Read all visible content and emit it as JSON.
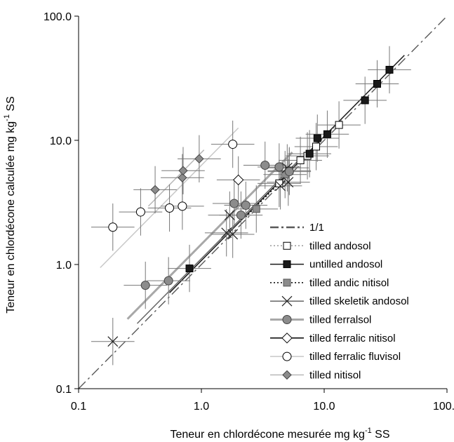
{
  "chart_data": {
    "type": "scatter",
    "xlabel": "Teneur en chlordécone mesurée  mg kg",
    "xlabel_sup": "-1",
    "xlabel_unit": " SS",
    "ylabel": "Teneur en chlordécone calculée  mg kg",
    "ylabel_sup": "-1",
    "ylabel_unit": " SS",
    "xscale": "log",
    "yscale": "log",
    "xlim": [
      0.1,
      100
    ],
    "ylim": [
      0.1,
      100
    ],
    "x_ticks": [
      0.1,
      1,
      10,
      100
    ],
    "y_ticks": [
      0.1,
      1,
      10,
      100
    ],
    "x_tick_labels": [
      "0.1",
      "1.0",
      "10.0",
      "100.0"
    ],
    "y_tick_labels": [
      "0.1",
      "1.0",
      "10.0",
      "100.0"
    ],
    "grid": false,
    "legend_position": "lower-right",
    "reference_line": {
      "name": "1/1",
      "color": "#595959",
      "style": "dash-dot",
      "x": [
        0.1,
        100
      ],
      "y": [
        0.1,
        100
      ]
    },
    "series": [
      {
        "name": "tilled andosol",
        "marker": "square-open",
        "color": "#000000",
        "fit_color": "#9a9a9a",
        "fit_style": "dotted",
        "fit_x": [
          4.5,
          14
        ],
        "points": [
          {
            "x": 4.3,
            "y": 4.5
          },
          {
            "x": 5.2,
            "y": 5.7
          },
          {
            "x": 6.4,
            "y": 6.9
          },
          {
            "x": 7.3,
            "y": 7.5
          },
          {
            "x": 8.6,
            "y": 8.9
          },
          {
            "x": 13.2,
            "y": 13.3
          }
        ]
      },
      {
        "name": "untilled andosol",
        "marker": "square-filled",
        "color": "#1a1a1a",
        "fit_color": "#1a1a1a",
        "fit_style": "solid",
        "fit_x": [
          0.55,
          45
        ],
        "points": [
          {
            "x": 0.8,
            "y": 0.93
          },
          {
            "x": 7.6,
            "y": 7.8
          },
          {
            "x": 8.8,
            "y": 10.4
          },
          {
            "x": 10.6,
            "y": 11.2
          },
          {
            "x": 21.5,
            "y": 21.0
          },
          {
            "x": 27.0,
            "y": 28.5
          },
          {
            "x": 34.0,
            "y": 37.0
          }
        ]
      },
      {
        "name": "tilled andic nitisol",
        "marker": "square-gray",
        "color": "#8c8c8c",
        "fit_color": "#000000",
        "fit_style": "dotted",
        "fit_x": [
          2.3,
          5.5
        ],
        "points": [
          {
            "x": 2.8,
            "y": 2.8
          },
          {
            "x": 4.8,
            "y": 5.3
          }
        ]
      },
      {
        "name": "tilled skeletik andosol",
        "marker": "x",
        "color": "#222222",
        "fit_color": "#666666",
        "fit_style": "solid",
        "fit_x": [
          0.3,
          6.5
        ],
        "points": [
          {
            "x": 0.19,
            "y": 0.24
          },
          {
            "x": 1.6,
            "y": 1.8
          },
          {
            "x": 1.7,
            "y": 2.5
          },
          {
            "x": 1.8,
            "y": 1.75
          },
          {
            "x": 4.4,
            "y": 4.3
          },
          {
            "x": 5.0,
            "y": 6.0
          },
          {
            "x": 5.1,
            "y": 4.6
          }
        ]
      },
      {
        "name": "tilled ferralsol",
        "marker": "circle-gray",
        "color": "#8c8c8c",
        "fit_color": "#a8a8a8",
        "fit_style": "solid",
        "fit_x": [
          0.25,
          5.5
        ],
        "points": [
          {
            "x": 0.35,
            "y": 0.68
          },
          {
            "x": 0.54,
            "y": 0.74
          },
          {
            "x": 1.85,
            "y": 3.1
          },
          {
            "x": 2.1,
            "y": 2.5
          },
          {
            "x": 2.3,
            "y": 3.0
          },
          {
            "x": 3.3,
            "y": 6.3
          },
          {
            "x": 4.3,
            "y": 6.1
          },
          {
            "x": 5.2,
            "y": 5.6
          }
        ]
      },
      {
        "name": "tilled ferralic nitisol",
        "marker": "diamond-open",
        "color": "#000000",
        "points": [
          {
            "x": 2.0,
            "y": 4.8
          }
        ]
      },
      {
        "name": "tilled ferralic fluvisol",
        "marker": "circle-open",
        "color": "#000000",
        "fit_color": "#c8c8c8",
        "fit_style": "solid",
        "fit_x": [
          0.15,
          2.0
        ],
        "points": [
          {
            "x": 0.19,
            "y": 2.0
          },
          {
            "x": 0.32,
            "y": 2.65
          },
          {
            "x": 0.55,
            "y": 2.85
          },
          {
            "x": 0.7,
            "y": 2.95
          },
          {
            "x": 1.8,
            "y": 9.3
          }
        ]
      },
      {
        "name": "tilled nitisol",
        "marker": "diamond-gray",
        "color": "#8c8c8c",
        "fit_color": "#b8b8b8",
        "fit_style": "solid",
        "fit_x": [
          0.37,
          1.05
        ],
        "points": [
          {
            "x": 0.42,
            "y": 4.0
          },
          {
            "x": 0.7,
            "y": 5.0
          },
          {
            "x": 0.71,
            "y": 5.7
          },
          {
            "x": 0.96,
            "y": 7.1
          }
        ]
      }
    ]
  }
}
